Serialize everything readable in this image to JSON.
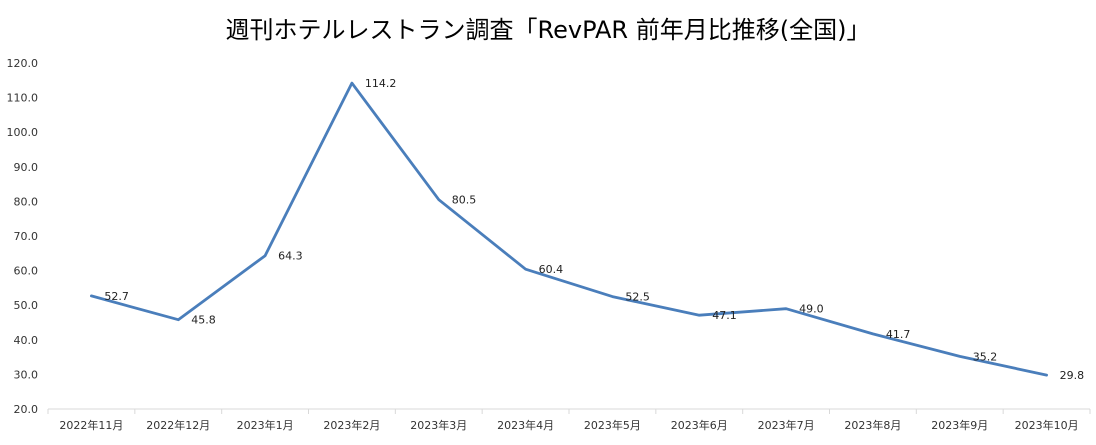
{
  "chart_data": {
    "type": "line",
    "title": "週刊ホテルレストラン調査「RevPAR 前年月比推移(全国)」",
    "xlabel": "",
    "ylabel": "",
    "categories": [
      "2022年11月",
      "2022年12月",
      "2023年1月",
      "2023年2月",
      "2023年3月",
      "2023年4月",
      "2023年5月",
      "2023年6月",
      "2023年7月",
      "2023年8月",
      "2023年9月",
      "2023年10月"
    ],
    "series": [
      {
        "values": [
          52.7,
          45.8,
          64.3,
          114.2,
          80.5,
          60.4,
          52.5,
          47.1,
          49.0,
          41.7,
          35.2,
          29.8
        ]
      }
    ],
    "data_labels": [
      "52.7",
      "45.8",
      "64.3",
      "114.2",
      "80.5",
      "60.4",
      "52.5",
      "47.1",
      "49.0",
      "41.7",
      "35.2",
      "29.8"
    ],
    "y_ticks": [
      "20.0",
      "30.0",
      "40.0",
      "50.0",
      "60.0",
      "70.0",
      "80.0",
      "90.0",
      "100.0",
      "110.0",
      "120.0"
    ],
    "ylim": [
      20,
      120
    ],
    "grid": false,
    "legend": "none",
    "line_color": "#4a7ebb",
    "axis_color": "#d9d9d9"
  }
}
